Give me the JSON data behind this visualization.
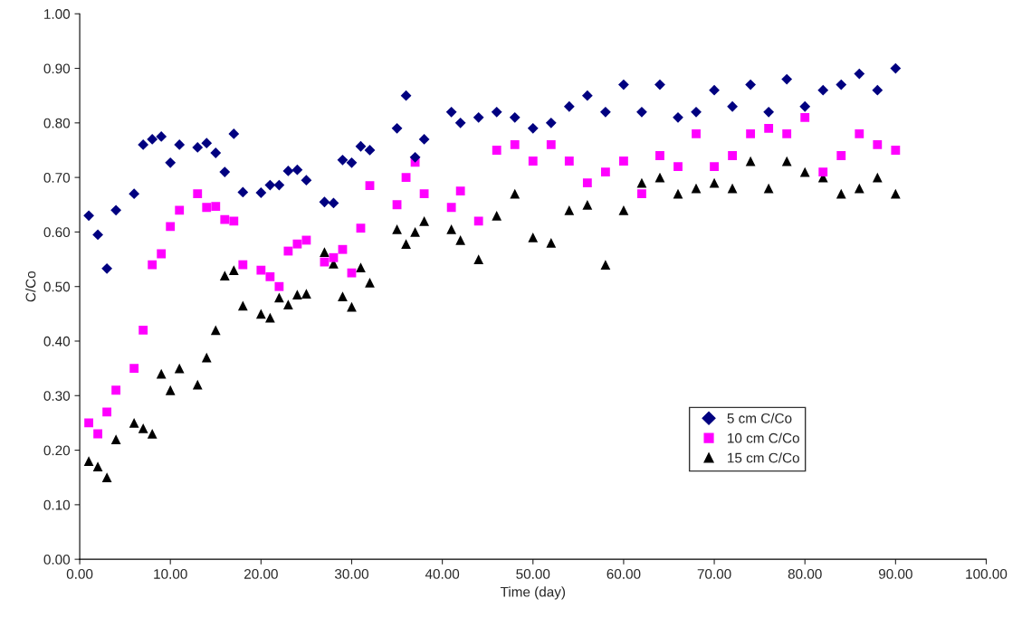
{
  "chart_data": {
    "type": "scatter",
    "xlabel": "Time (day)",
    "ylabel": "C/Co",
    "x": [
      1,
      2,
      3,
      4,
      6,
      7,
      8,
      9,
      10,
      11,
      13,
      14,
      15,
      16,
      17,
      18,
      20,
      21,
      22,
      23,
      24,
      25,
      27,
      28,
      29,
      30,
      31,
      32,
      35,
      36,
      37,
      38,
      41,
      42,
      44,
      46,
      48,
      50,
      52,
      54,
      56,
      58,
      60,
      62,
      64,
      66,
      68,
      70,
      72,
      74,
      76,
      78,
      80,
      82,
      84,
      86,
      88,
      90
    ],
    "series": [
      {
        "name": "5 cm C/Co",
        "color": "#000080",
        "marker": "diamond",
        "values": [
          0.63,
          0.595,
          0.533,
          0.64,
          0.67,
          0.76,
          0.77,
          0.775,
          0.727,
          0.76,
          0.755,
          0.763,
          0.745,
          0.71,
          0.78,
          0.673,
          0.672,
          0.686,
          0.686,
          0.712,
          0.714,
          0.695,
          0.655,
          0.653,
          0.732,
          0.727,
          0.757,
          0.75,
          0.79,
          0.85,
          0.737,
          0.77,
          0.82,
          0.8,
          0.81,
          0.82,
          0.81,
          0.79,
          0.8,
          0.83,
          0.85,
          0.82,
          0.87,
          0.82,
          0.87,
          0.81,
          0.82,
          0.86,
          0.83,
          0.87,
          0.82,
          0.88,
          0.83,
          0.86,
          0.87,
          0.89,
          0.86,
          0.9
        ]
      },
      {
        "name": "10 cm C/Co",
        "color": "#ff00ff",
        "marker": "square",
        "values": [
          0.25,
          0.23,
          0.27,
          0.31,
          0.35,
          0.42,
          0.54,
          0.56,
          0.61,
          0.64,
          0.67,
          0.645,
          0.647,
          0.623,
          0.62,
          0.54,
          0.53,
          0.518,
          0.5,
          0.565,
          0.578,
          0.585,
          0.545,
          0.553,
          0.568,
          0.525,
          0.607,
          0.685,
          0.65,
          0.7,
          0.728,
          0.67,
          0.645,
          0.675,
          0.62,
          0.75,
          0.76,
          0.73,
          0.76,
          0.73,
          0.69,
          0.71,
          0.73,
          0.67,
          0.74,
          0.72,
          0.78,
          0.72,
          0.74,
          0.78,
          0.79,
          0.78,
          0.81,
          0.71,
          0.74,
          0.78,
          0.76,
          0.75
        ]
      },
      {
        "name": "15 cm C/Co",
        "color": "#000000",
        "marker": "triangle",
        "values": [
          0.18,
          0.17,
          0.15,
          0.22,
          0.25,
          0.24,
          0.23,
          0.34,
          0.31,
          0.35,
          0.32,
          0.37,
          0.42,
          0.52,
          0.53,
          0.465,
          0.45,
          0.443,
          0.48,
          0.467,
          0.485,
          0.487,
          0.563,
          0.542,
          0.482,
          0.463,
          0.535,
          0.507,
          0.605,
          0.578,
          0.6,
          0.62,
          0.605,
          0.585,
          0.55,
          0.63,
          0.67,
          0.59,
          0.58,
          0.64,
          0.65,
          0.54,
          0.64,
          0.69,
          0.7,
          0.67,
          0.68,
          0.69,
          0.68,
          0.73,
          0.68,
          0.73,
          0.71,
          0.7,
          0.67,
          0.68,
          0.7,
          0.67
        ]
      }
    ],
    "xlim": [
      0,
      100
    ],
    "xticks": [
      {
        "value": 0,
        "label": "0.00"
      },
      {
        "value": 10,
        "label": "10.00"
      },
      {
        "value": 20,
        "label": "20.00"
      },
      {
        "value": 30,
        "label": "30.00"
      },
      {
        "value": 40,
        "label": "40.00"
      },
      {
        "value": 50,
        "label": "50.00"
      },
      {
        "value": 60,
        "label": "60.00"
      },
      {
        "value": 70,
        "label": "70.00"
      },
      {
        "value": 80,
        "label": "80.00"
      },
      {
        "value": 90,
        "label": "90.00"
      },
      {
        "value": 100,
        "label": "100.00"
      }
    ],
    "ylim": [
      0,
      1
    ],
    "yticks": [
      {
        "value": 0,
        "label": "0.00"
      },
      {
        "value": 0.1,
        "label": "0.10"
      },
      {
        "value": 0.2,
        "label": "0.20"
      },
      {
        "value": 0.3,
        "label": "0.30"
      },
      {
        "value": 0.4,
        "label": "0.40"
      },
      {
        "value": 0.5,
        "label": "0.50"
      },
      {
        "value": 0.6,
        "label": "0.60"
      },
      {
        "value": 0.7,
        "label": "0.70"
      },
      {
        "value": 0.8,
        "label": "0.80"
      },
      {
        "value": 0.9,
        "label": "0.90"
      },
      {
        "value": 1,
        "label": "1.00"
      }
    ],
    "grid": false,
    "legend": "right"
  }
}
